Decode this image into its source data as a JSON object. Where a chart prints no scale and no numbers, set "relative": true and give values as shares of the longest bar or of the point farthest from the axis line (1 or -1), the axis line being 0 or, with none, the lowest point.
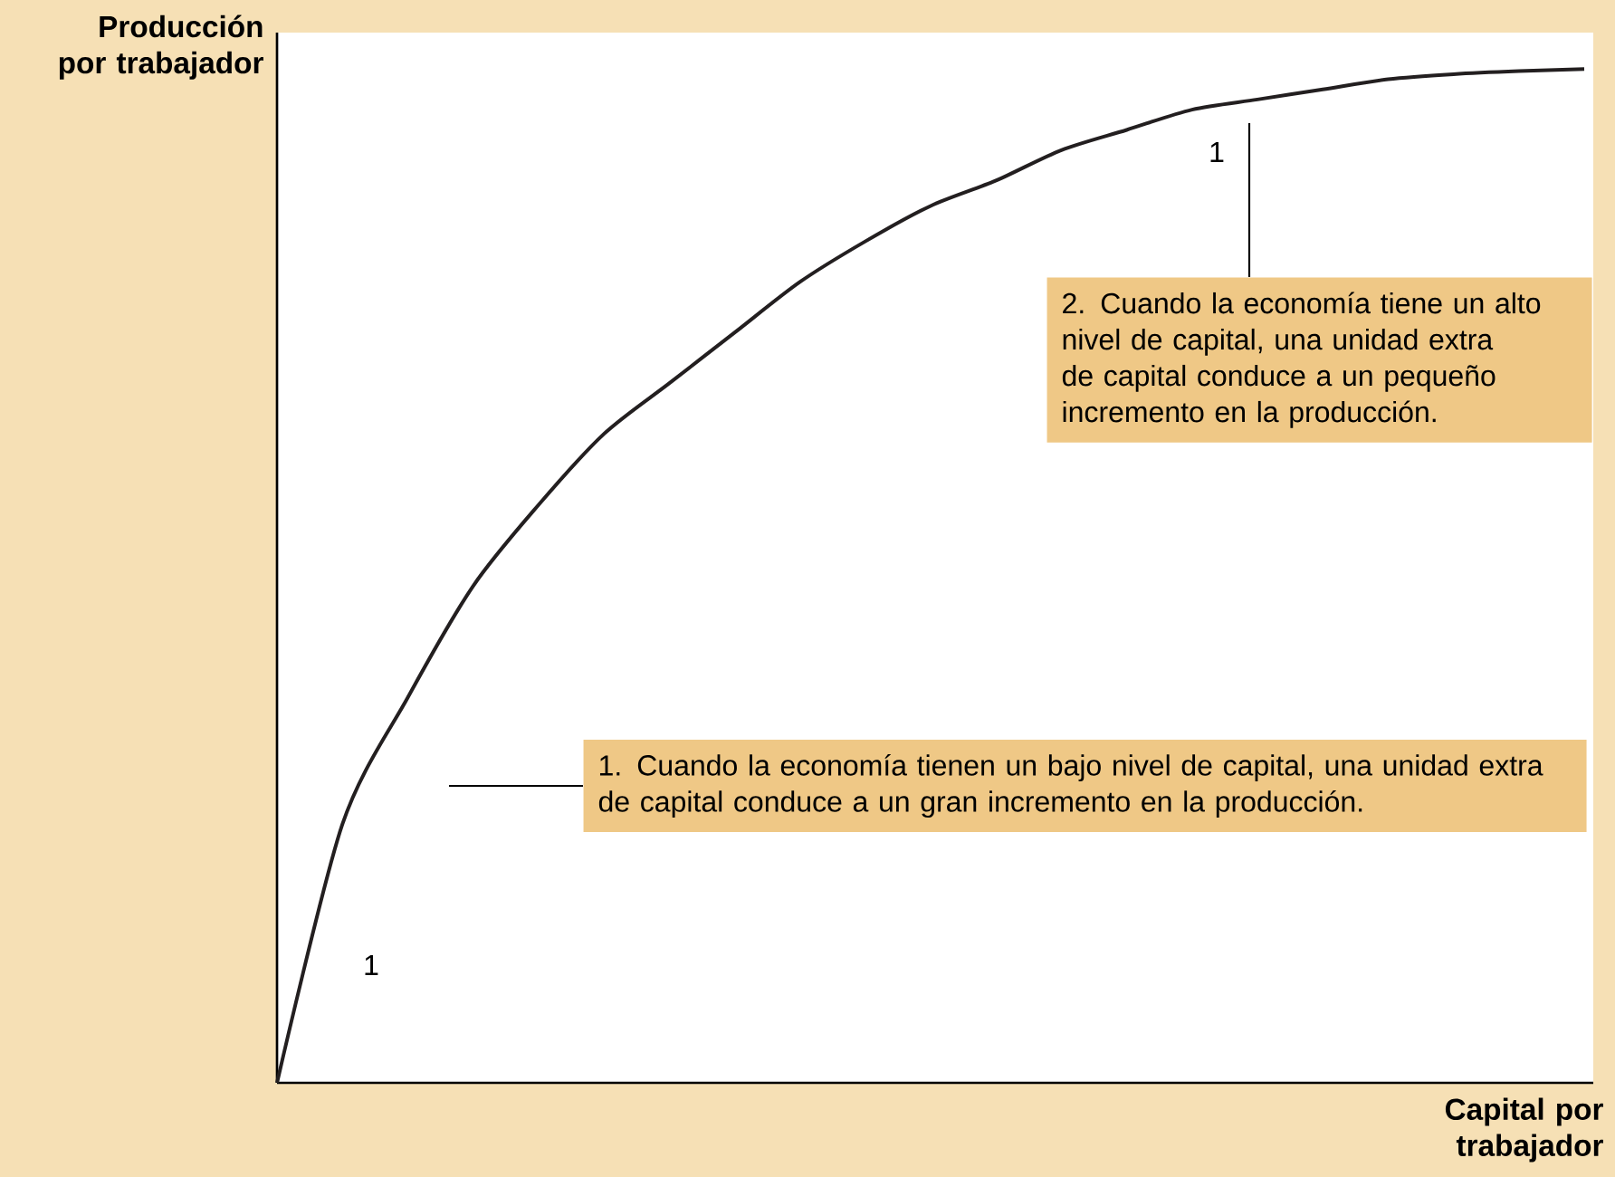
{
  "chart_data": {
    "type": "line",
    "relative": true,
    "xlabel": "Capital por trabajador",
    "ylabel": "Producción por trabajador",
    "categories": [
      null,
      null,
      null,
      null,
      null,
      null,
      null,
      null,
      null,
      null,
      null,
      null,
      null,
      null,
      null,
      null,
      null,
      null,
      null,
      null,
      null
    ],
    "series": [
      {
        "color": "#231f20",
        "values": [
          0,
          0.255,
          0.38,
          0.49,
          0.57,
          0.64,
          0.69,
          0.74,
          0.79,
          0.83,
          0.865,
          0.89,
          0.92,
          0.94,
          0.96,
          0.97,
          0.98,
          0.99,
          0.995,
          0.998,
          1
        ]
      }
    ],
    "marker": "none",
    "line_style": "solid",
    "annotations": [
      "1",
      "1",
      "2. Cuando la economía tiene un alto nivel de capital, una unidad extra de capital conduce a un pequeño incremento en la producción.",
      "1. Cuando la economía tienen un bajo nivel de capital, una unidad extra de capital conduce a un gran incremento en la producción."
    ]
  }
}
